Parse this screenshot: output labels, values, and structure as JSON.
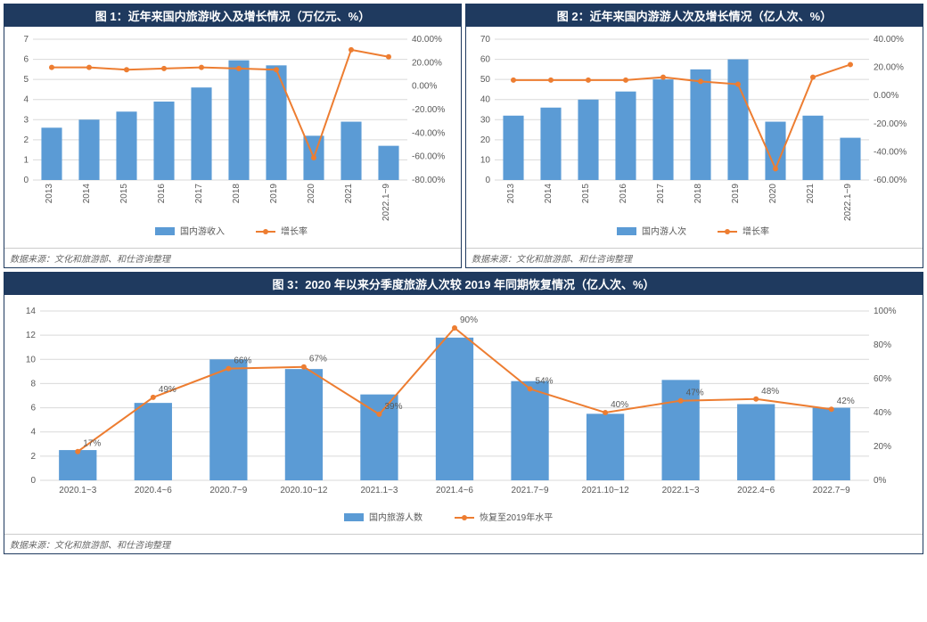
{
  "colors": {
    "title_bg": "#1f3a5f",
    "title_fg": "#ffffff",
    "border": "#1f3a5f",
    "bar": "#5b9bd5",
    "line": "#ed7d31",
    "grid": "#d9d9d9",
    "axis_text": "#595959",
    "source_text": "#666666",
    "bg": "#ffffff"
  },
  "chart1": {
    "type": "bar+line",
    "title": "图 1：近年来国内旅游收入及增长情况（万亿元、%）",
    "source": "数据来源：文化和旅游部、和仕咨询整理",
    "categories": [
      "2013",
      "2014",
      "2015",
      "2016",
      "2017",
      "2018",
      "2019",
      "2020",
      "2021",
      "2022.1~9"
    ],
    "bar_values": [
      2.6,
      3.0,
      3.4,
      3.9,
      4.6,
      5.95,
      5.7,
      2.2,
      2.9,
      1.7
    ],
    "line_values": [
      16,
      16,
      14,
      15,
      16,
      15,
      14,
      -61,
      31,
      25
    ],
    "y_left": {
      "min": 0,
      "max": 7,
      "step": 1
    },
    "y_right": {
      "min": -80,
      "max": 40,
      "step": 20,
      "suffix": "%",
      "decimals": 2
    },
    "legend": {
      "bar": "国内游收入",
      "line": "增长率"
    },
    "rotate_x": true,
    "bar_width": 0.55
  },
  "chart2": {
    "type": "bar+line",
    "title": "图 2：近年来国内游游人次及增长情况（亿人次、%）",
    "source": "数据来源：文化和旅游部、和仕咨询整理",
    "categories": [
      "2013",
      "2014",
      "2015",
      "2016",
      "2017",
      "2018",
      "2019",
      "2020",
      "2021",
      "2022.1~9"
    ],
    "bar_values": [
      32,
      36,
      40,
      44,
      50,
      55,
      60,
      29,
      32,
      21
    ],
    "line_values": [
      11,
      11,
      11,
      11,
      13,
      10,
      8,
      -52,
      13,
      22
    ],
    "y_left": {
      "min": 0,
      "max": 70,
      "step": 10
    },
    "y_right": {
      "min": -60,
      "max": 40,
      "step": 20,
      "suffix": "%",
      "decimals": 2
    },
    "legend": {
      "bar": "国内游人次",
      "line": "增长率"
    },
    "rotate_x": true,
    "bar_width": 0.55
  },
  "chart3": {
    "type": "bar+line",
    "title": "图 3：2020 年以来分季度旅游人次较 2019 年同期恢复情况（亿人次、%）",
    "source": "数据来源：文化和旅游部、和仕咨询整理",
    "categories": [
      "2020.1~3",
      "2020.4~6",
      "2020.7~9",
      "2020.10~12",
      "2021.1~3",
      "2021.4~6",
      "2021.7~9",
      "2021.10~12",
      "2022.1~3",
      "2022.4~6",
      "2022.7~9"
    ],
    "bar_values": [
      2.5,
      6.4,
      10.0,
      9.2,
      7.1,
      11.8,
      8.2,
      5.5,
      8.3,
      6.3,
      6.0
    ],
    "line_values": [
      17,
      49,
      66,
      67,
      39,
      90,
      54,
      40,
      47,
      48,
      42
    ],
    "line_labels": [
      "17%",
      "49%",
      "66%",
      "67%",
      "39%",
      "90%",
      "54%",
      "40%",
      "47%",
      "48%",
      "42%"
    ],
    "y_left": {
      "min": 0,
      "max": 14,
      "step": 2
    },
    "y_right": {
      "min": 0,
      "max": 100,
      "step": 20,
      "suffix": "%",
      "decimals": 0
    },
    "legend": {
      "bar": "国内旅游人数",
      "line": "恢复至2019年水平"
    },
    "rotate_x": false,
    "bar_width": 0.5
  }
}
